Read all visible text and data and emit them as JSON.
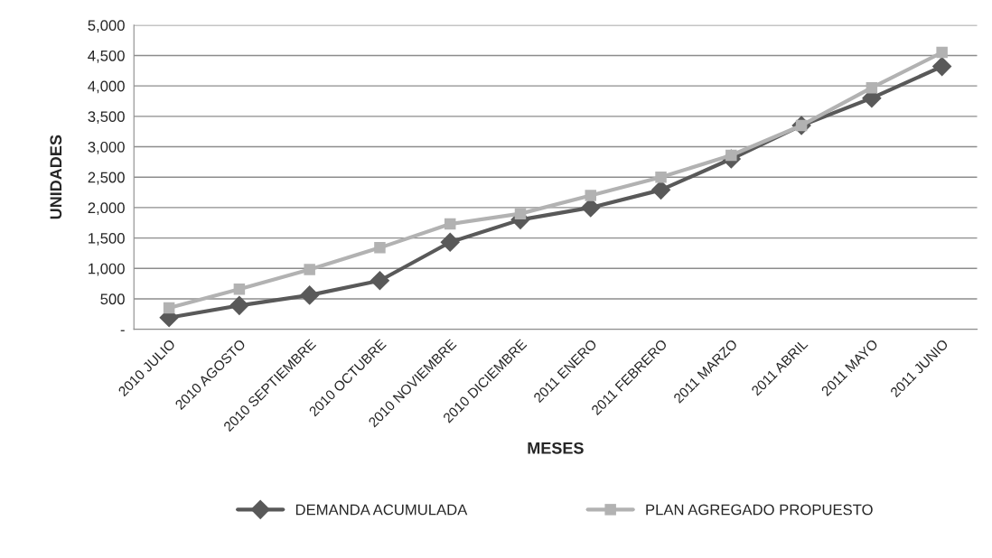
{
  "chart_data": {
    "type": "line",
    "xlabel": "MESES",
    "ylabel": "UNIDADES",
    "categories": [
      "2010 JULIO",
      "2010 AGOSTO",
      "2010 SEPTIEMBRE",
      "2010 OCTUBRE",
      "2010 NOVIEMBRE",
      "2010 DICIEMBRE",
      "2011 ENERO",
      "2011 FEBRERO",
      "2011 MARZO",
      "2011 ABRIL",
      "2011 MAYO",
      "2011 JUNIO"
    ],
    "series": [
      {
        "name": "DEMANDA ACUMULADA",
        "color": "#595959",
        "marker": "diamond",
        "values": [
          190,
          390,
          560,
          800,
          1430,
          1800,
          2000,
          2290,
          2800,
          3350,
          3800,
          4320
        ]
      },
      {
        "name": "PLAN AGREGADO PROPUESTO",
        "color": "#b2b2b2",
        "marker": "square",
        "values": [
          350,
          660,
          980,
          1340,
          1730,
          1900,
          2200,
          2500,
          2860,
          3350,
          3970,
          4550
        ]
      }
    ],
    "ylim": [
      0,
      5000
    ],
    "yticks": [
      {
        "value": 0,
        "label": "-"
      },
      {
        "value": 500,
        "label": "500"
      },
      {
        "value": 1000,
        "label": "1,000"
      },
      {
        "value": 1500,
        "label": "1,500"
      },
      {
        "value": 2000,
        "label": "2,000"
      },
      {
        "value": 2500,
        "label": "2,500"
      },
      {
        "value": 3000,
        "label": "3,000"
      },
      {
        "value": 3500,
        "label": "3,500"
      },
      {
        "value": 4000,
        "label": "4,000"
      },
      {
        "value": 4500,
        "label": "4,500"
      },
      {
        "value": 5000,
        "label": "5,000"
      }
    ],
    "grid": "y",
    "legend": "bottom",
    "line_style": "solid"
  }
}
